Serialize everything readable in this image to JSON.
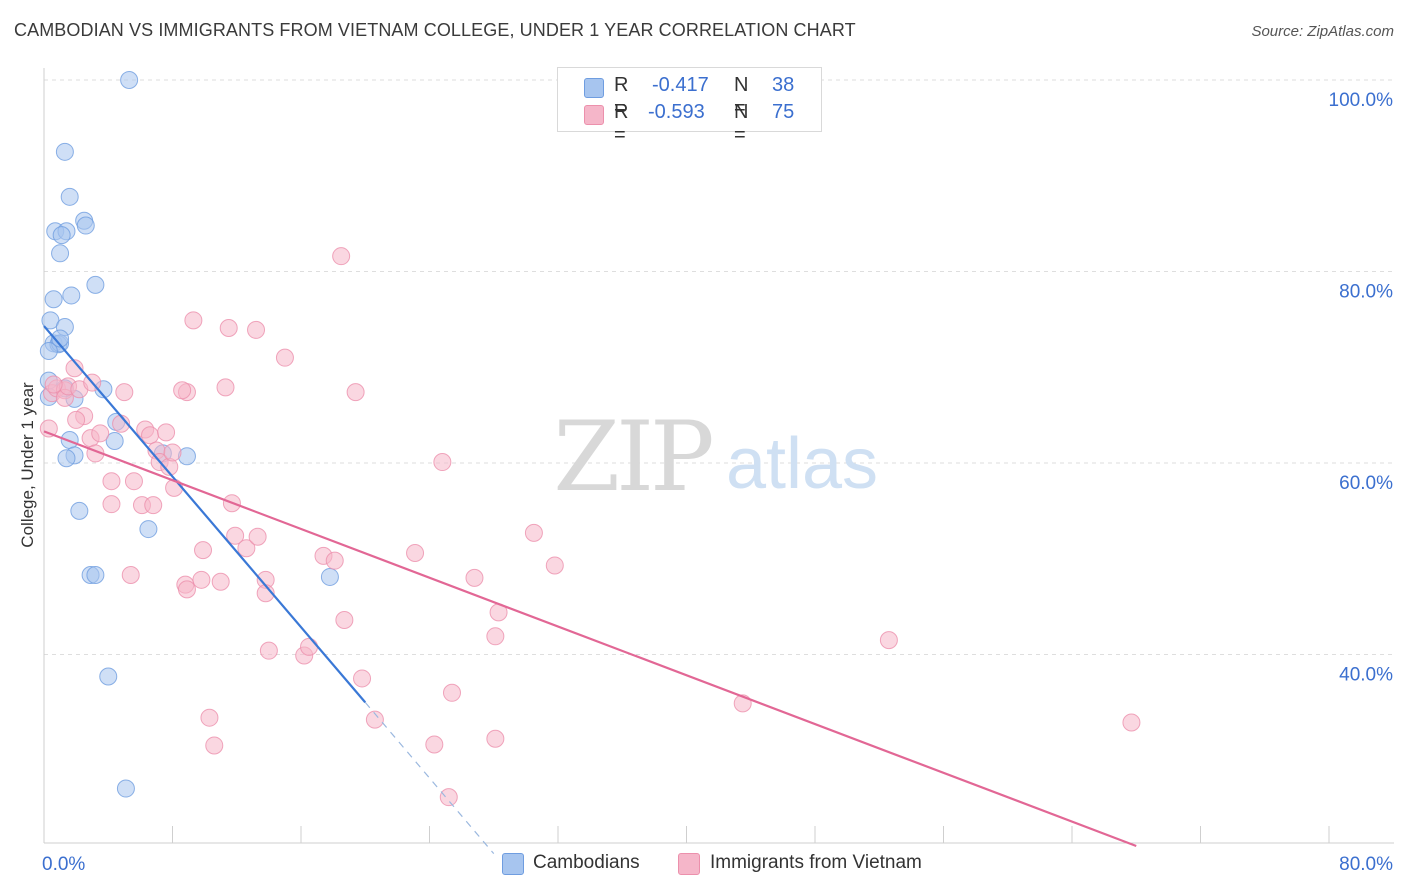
{
  "title": "CAMBODIAN VS IMMIGRANTS FROM VIETNAM COLLEGE, UNDER 1 YEAR CORRELATION CHART",
  "source": "Source: ZipAtlas.com",
  "watermark": {
    "part1": "ZIP",
    "part2": "atlas"
  },
  "stats": [
    {
      "r_label": "R =",
      "r_value": "-0.417",
      "n_label": "N =",
      "n_value": "38",
      "color": "#a7c5ef"
    },
    {
      "r_label": "R =",
      "r_value": "-0.593",
      "n_label": "N =",
      "n_value": "75",
      "color": "#f5b6c9"
    }
  ],
  "legend": [
    {
      "label": "Cambodians",
      "color": "#a7c5ef"
    },
    {
      "label": "Immigrants from Vietnam",
      "color": "#f5b6c9"
    }
  ],
  "chart_data": {
    "type": "scatter",
    "title": "CAMBODIAN VS IMMIGRANTS FROM VIETNAM COLLEGE, UNDER 1 YEAR CORRELATION CHART",
    "xlabel": "",
    "ylabel": "College, Under 1 year",
    "xlim": [
      0,
      80
    ],
    "ylim": [
      20,
      104
    ],
    "x_tick_labels": [
      {
        "value": 0,
        "label": "0.0%"
      },
      {
        "value": 80,
        "label": "80.0%"
      }
    ],
    "y_tick_labels": [
      {
        "value": 100,
        "label": "100.0%"
      },
      {
        "value": 80,
        "label": "80.0%"
      },
      {
        "value": 60,
        "label": "60.0%"
      },
      {
        "value": 40,
        "label": "40.0%"
      }
    ],
    "x_minor_ticks": [
      0,
      8,
      16,
      24,
      32,
      40,
      48,
      56,
      64,
      72,
      80
    ],
    "grid": true,
    "series": [
      {
        "name": "Cambodians",
        "color": "#a7c5ef",
        "stroke": "#6f9de0",
        "line_color": "#3a78d6",
        "points": [
          [
            5.3,
            100.0
          ],
          [
            1.3,
            92.5
          ],
          [
            1.6,
            87.8
          ],
          [
            2.5,
            85.3
          ],
          [
            2.6,
            84.8
          ],
          [
            0.7,
            84.2
          ],
          [
            1.4,
            84.2
          ],
          [
            1.1,
            83.8
          ],
          [
            1.0,
            81.9
          ],
          [
            3.2,
            78.6
          ],
          [
            1.7,
            77.5
          ],
          [
            0.6,
            77.1
          ],
          [
            0.4,
            74.9
          ],
          [
            1.3,
            74.2
          ],
          [
            0.6,
            72.5
          ],
          [
            0.9,
            72.4
          ],
          [
            1.0,
            72.5
          ],
          [
            0.3,
            71.7
          ],
          [
            1.9,
            66.7
          ],
          [
            3.7,
            67.7
          ],
          [
            1.3,
            67.8
          ],
          [
            0.3,
            66.9
          ],
          [
            4.4,
            62.3
          ],
          [
            4.5,
            64.3
          ],
          [
            1.6,
            62.4
          ],
          [
            1.9,
            60.8
          ],
          [
            1.4,
            60.5
          ],
          [
            7.4,
            61.0
          ],
          [
            8.9,
            60.7
          ],
          [
            2.2,
            55.0
          ],
          [
            6.5,
            53.1
          ],
          [
            2.9,
            48.3
          ],
          [
            3.2,
            48.3
          ],
          [
            17.8,
            48.1
          ],
          [
            4.0,
            37.7
          ],
          [
            5.1,
            26.0
          ],
          [
            0.3,
            68.6
          ],
          [
            1.0,
            73.0
          ]
        ],
        "trend": {
          "x1": 0.0,
          "y1": 74.3,
          "x2": 20.0,
          "y2": 35.0,
          "dash_x2": 28.0,
          "dash_y2": 19.2
        }
      },
      {
        "name": "Immigrants from Vietnam",
        "color": "#f5b6c9",
        "stroke": "#ec90ac",
        "line_color": "#e26795",
        "points": [
          [
            0.3,
            63.6
          ],
          [
            0.5,
            67.3
          ],
          [
            0.8,
            67.8
          ],
          [
            1.3,
            67.6
          ],
          [
            1.3,
            66.8
          ],
          [
            1.5,
            68.0
          ],
          [
            1.9,
            69.9
          ],
          [
            2.2,
            67.7
          ],
          [
            2.5,
            64.9
          ],
          [
            2.9,
            62.6
          ],
          [
            3.2,
            61.0
          ],
          [
            3.0,
            68.4
          ],
          [
            3.5,
            63.1
          ],
          [
            4.2,
            58.1
          ],
          [
            4.2,
            55.7
          ],
          [
            4.8,
            64.1
          ],
          [
            5.0,
            67.4
          ],
          [
            5.4,
            48.3
          ],
          [
            5.6,
            58.1
          ],
          [
            6.1,
            55.6
          ],
          [
            6.3,
            63.5
          ],
          [
            6.6,
            62.9
          ],
          [
            6.8,
            55.6
          ],
          [
            7.0,
            61.3
          ],
          [
            7.2,
            60.1
          ],
          [
            7.6,
            63.2
          ],
          [
            7.8,
            59.6
          ],
          [
            8.0,
            61.1
          ],
          [
            8.1,
            57.4
          ],
          [
            8.9,
            67.4
          ],
          [
            8.6,
            67.6
          ],
          [
            8.8,
            47.3
          ],
          [
            8.9,
            46.8
          ],
          [
            9.3,
            74.9
          ],
          [
            9.9,
            50.9
          ],
          [
            9.8,
            47.8
          ],
          [
            10.3,
            33.4
          ],
          [
            10.6,
            30.5
          ],
          [
            11.0,
            47.6
          ],
          [
            11.3,
            67.9
          ],
          [
            11.5,
            74.1
          ],
          [
            11.7,
            55.8
          ],
          [
            11.9,
            52.4
          ],
          [
            12.6,
            51.1
          ],
          [
            13.2,
            73.9
          ],
          [
            13.3,
            52.3
          ],
          [
            13.8,
            47.8
          ],
          [
            13.8,
            46.4
          ],
          [
            14.0,
            40.4
          ],
          [
            15.0,
            71.0
          ],
          [
            16.2,
            39.9
          ],
          [
            16.5,
            40.8
          ],
          [
            17.4,
            50.3
          ],
          [
            18.1,
            49.8
          ],
          [
            18.5,
            81.6
          ],
          [
            18.7,
            43.6
          ],
          [
            19.4,
            67.4
          ],
          [
            19.8,
            37.5
          ],
          [
            20.6,
            33.2
          ],
          [
            23.1,
            50.6
          ],
          [
            24.3,
            30.6
          ],
          [
            24.8,
            60.1
          ],
          [
            25.2,
            25.1
          ],
          [
            25.4,
            36.0
          ],
          [
            26.8,
            48.0
          ],
          [
            28.1,
            41.9
          ],
          [
            28.3,
            44.4
          ],
          [
            28.1,
            31.2
          ],
          [
            30.5,
            52.7
          ],
          [
            31.8,
            49.3
          ],
          [
            43.5,
            34.9
          ],
          [
            52.6,
            41.5
          ],
          [
            67.7,
            32.9
          ],
          [
            2.0,
            64.5
          ],
          [
            0.6,
            68.2
          ]
        ],
        "trend": {
          "x1": 0.0,
          "y1": 63.3,
          "x2": 68.0,
          "y2": 20.0
        }
      }
    ]
  }
}
